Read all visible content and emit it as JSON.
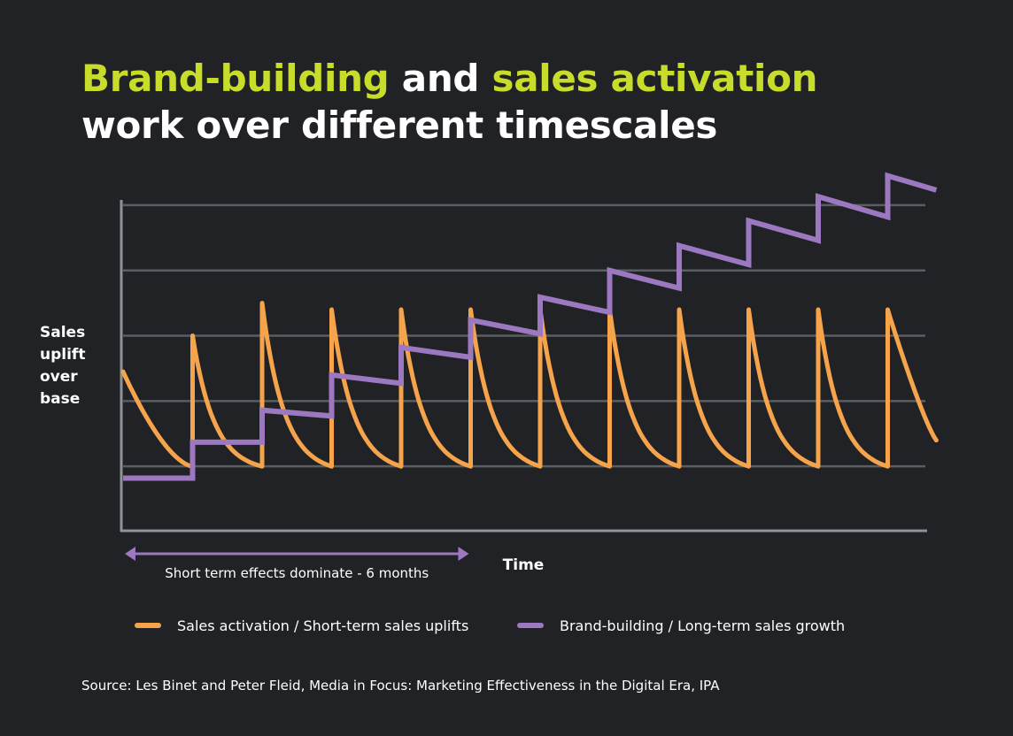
{
  "title": {
    "part1": "Brand-building",
    "part2": " and ",
    "part3": "sales activation",
    "part4": "work over different timescales"
  },
  "colors": {
    "background": "#202226",
    "highlight": "#c7dc2b",
    "sales_activation": "#f6a44b",
    "brand_building": "#9b78c0",
    "gridline": "#5a5d62",
    "axis": "#8f9297",
    "arrow": "#9b78c0"
  },
  "annotation": {
    "short_term": "Short term effects dominate - 6 months"
  },
  "source": "Source: Les Binet and Peter Fleid, Media in Focus: Marketing Effectiveness in the Digital Era, IPA",
  "chart_data": {
    "type": "line",
    "title": "Brand-building and sales activation work over different timescales",
    "xlabel": "Time",
    "ylabel": "Sales\nuplift\nover\nbase",
    "x_ticks_labeled": false,
    "y_ticks_labeled": false,
    "grid": true,
    "legend_position": "bottom",
    "xlim": [
      0,
      12
    ],
    "ylim": [
      0,
      5.5
    ],
    "y_gridlines": [
      1,
      2,
      3,
      4,
      5
    ],
    "series": [
      {
        "name": "Sales activation / Short-term sales uplifts",
        "line_style": "sawtooth",
        "start_value": 2.45,
        "min_value": 1.0,
        "peaks": [
          {
            "x": 1,
            "value": 3.0
          },
          {
            "x": 2,
            "value": 3.5
          },
          {
            "x": 3,
            "value": 3.4
          },
          {
            "x": 4,
            "value": 3.4
          },
          {
            "x": 5,
            "value": 3.4
          },
          {
            "x": 6,
            "value": 3.4
          },
          {
            "x": 7,
            "value": 3.4
          },
          {
            "x": 8,
            "value": 3.4
          },
          {
            "x": 9,
            "value": 3.4
          },
          {
            "x": 10,
            "value": 3.4
          },
          {
            "x": 11,
            "value": 3.4
          }
        ],
        "end_value": 1.4
      },
      {
        "name": "Brand-building / Long-term sales growth",
        "line_style": "stepped",
        "steps": [
          {
            "x0": 0,
            "x1": 1,
            "y_start": 0.82,
            "y_end": 0.82
          },
          {
            "x0": 1,
            "x1": 2,
            "y_start": 1.37,
            "y_end": 1.37
          },
          {
            "x0": 2,
            "x1": 3,
            "y_start": 1.86,
            "y_end": 1.77
          },
          {
            "x0": 3,
            "x1": 4,
            "y_start": 2.4,
            "y_end": 2.27
          },
          {
            "x0": 4,
            "x1": 5,
            "y_start": 2.82,
            "y_end": 2.67
          },
          {
            "x0": 5,
            "x1": 6,
            "y_start": 3.24,
            "y_end": 3.03
          },
          {
            "x0": 6,
            "x1": 7,
            "y_start": 3.59,
            "y_end": 3.36
          },
          {
            "x0": 7,
            "x1": 8,
            "y_start": 4.0,
            "y_end": 3.73
          },
          {
            "x0": 8,
            "x1": 9,
            "y_start": 4.38,
            "y_end": 4.09
          },
          {
            "x0": 9,
            "x1": 10,
            "y_start": 4.76,
            "y_end": 4.46
          },
          {
            "x0": 10,
            "x1": 11,
            "y_start": 5.13,
            "y_end": 4.82
          },
          {
            "x0": 11,
            "x1": 11.7,
            "y_start": 5.45,
            "y_end": 5.23
          }
        ]
      }
    ],
    "annotation_span": {
      "x0": 0,
      "x1": 5,
      "label": "Short term effects dominate - 6 months"
    }
  }
}
